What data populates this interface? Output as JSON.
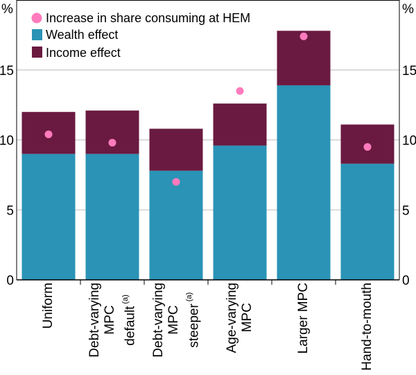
{
  "chart_data": {
    "type": "bar",
    "stacked": true,
    "categories": [
      {
        "lines": [
          "Uniform"
        ],
        "sup": ""
      },
      {
        "lines": [
          "Debt-varying",
          "MPC",
          "default"
        ],
        "sup": "(a)"
      },
      {
        "lines": [
          "Debt-varying",
          "MPC",
          "steeper"
        ],
        "sup": "(a)"
      },
      {
        "lines": [
          "Age-varying",
          "MPC"
        ],
        "sup": ""
      },
      {
        "lines": [
          "Larger MPC"
        ],
        "sup": ""
      },
      {
        "lines": [
          "Hand-to-mouth"
        ],
        "sup": ""
      }
    ],
    "series": [
      {
        "name": "Wealth effect",
        "kind": "bar",
        "color": "#2a93b6",
        "values": [
          9.0,
          9.0,
          7.8,
          9.6,
          13.9,
          8.3
        ]
      },
      {
        "name": "Income effect",
        "kind": "bar",
        "color": "#6a1a40",
        "values": [
          3.0,
          3.1,
          3.0,
          3.0,
          3.9,
          2.8
        ]
      },
      {
        "name": "Increase in share consuming at HEM",
        "kind": "dot",
        "color": "#ff7bbd",
        "values": [
          10.4,
          9.8,
          7.0,
          13.5,
          17.4,
          9.5
        ]
      }
    ],
    "ylabel_left": "%",
    "ylabel_right": "%",
    "ylim": [
      0,
      20
    ],
    "yticks": [
      0,
      5,
      10,
      15
    ],
    "grid": true,
    "legend_position": "top-left"
  }
}
